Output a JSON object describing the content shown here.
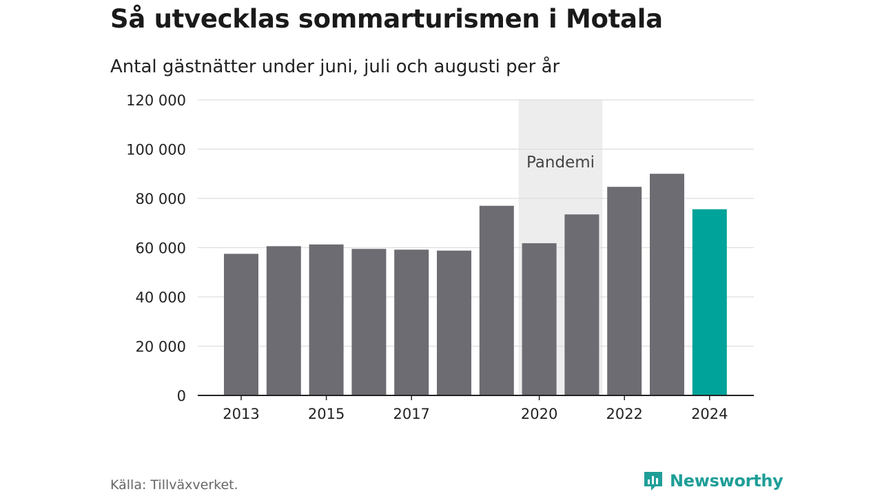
{
  "title": "Så utvecklas sommarturismen i Motala",
  "subtitle": "Antal gästnätter under juni, juli och augusti per år",
  "source": "Källa: Tillväxverket.",
  "brand": {
    "name": "Newsworthy",
    "icon": "newsworthy-logo-icon",
    "color": "#1f9e98"
  },
  "colors": {
    "bar": "#6d6c72",
    "highlight": "#00a39a",
    "shade": "#ededed",
    "grid": "#dddddd",
    "axis": "#222222"
  },
  "chart_data": {
    "type": "bar",
    "title": "Så utvecklas sommarturismen i Motala",
    "subtitle": "Antal gästnätter under juni, juli och augusti per år",
    "xlabel": "",
    "ylabel": "",
    "ylim": [
      0,
      120000
    ],
    "yticks": [
      0,
      20000,
      40000,
      60000,
      80000,
      100000,
      120000
    ],
    "ytick_labels": [
      "0",
      "20 000",
      "40 000",
      "60 000",
      "80 000",
      "100 000",
      "120 000"
    ],
    "categories": [
      "2013",
      "2014",
      "2015",
      "2016",
      "2017",
      "2018",
      "2019",
      "2020",
      "2021",
      "2022",
      "2023",
      "2024"
    ],
    "xtick_labels": [
      "2013",
      "2015",
      "2017",
      "2020",
      "2022",
      "2024"
    ],
    "values": [
      57500,
      60600,
      61300,
      59500,
      59200,
      58800,
      77000,
      61800,
      73500,
      84700,
      90000,
      75600
    ],
    "highlight_category": "2024",
    "shaded_region": {
      "label": "Pandemi",
      "from": "2020",
      "to": "2021"
    },
    "grid": true,
    "legend": "none"
  }
}
